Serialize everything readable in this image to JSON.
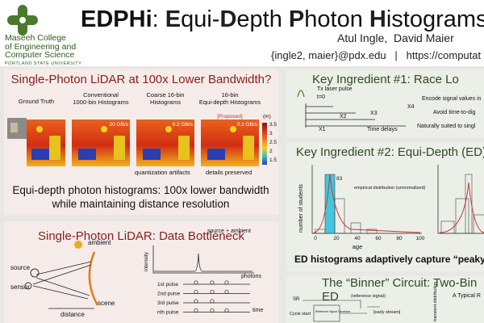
{
  "header": {
    "title_parts": [
      "EDPHi",
      ": ",
      "E",
      "qui-",
      "D",
      "epth ",
      "P",
      "hoton ",
      "H",
      "istograms for"
    ],
    "logo_lines": [
      "Maseeh College",
      "of Engineering and",
      "Computer Science",
      "PORTLAND STATE UNIVERSITY"
    ],
    "authors": "Atul Ingle,  David Maier",
    "contact": "{ingle2, maier}@pdx.edu   |   https://computat"
  },
  "panel_lidar": {
    "title": "Single-Photon LiDAR at 100x Lower Bandwidth?",
    "images": [
      {
        "label": "Ground Truth"
      },
      {
        "label": "Conventional 1000-bin Histograms",
        "rate": "20 GB/s"
      },
      {
        "label": "Coarse 16-bin Histograms",
        "rate": "0.2 GB/s"
      },
      {
        "label": "16-bin Equi-depth Histograms",
        "tag": "[Proposed]",
        "rate": "0.2 GB/s"
      }
    ],
    "colorbar_ticks": [
      "3.5",
      "3",
      "2.5",
      "2",
      "1.5"
    ],
    "colorbar_unit": "(m)",
    "notes": [
      "quantization artifacts",
      "details preserved"
    ],
    "caption": "Equi-depth photon histograms: 100x lower bandwidth while maintaining distance resolution"
  },
  "panel_bottleneck": {
    "title": "Single-Photon LiDAR: Data Bottleneck",
    "labels": {
      "source": "source",
      "ambient": "ambient",
      "sensor": "sensor",
      "scene": "scene",
      "distance": "distance",
      "intensity": "intensity",
      "peak": "source + ambient",
      "photons": "photons",
      "time": "time"
    },
    "pulses": [
      "1st pulse",
      "2nd pulse",
      "3rd pulse",
      "nth pulse"
    ]
  },
  "panel_race": {
    "title": "Key Ingredient #1: Race Lo",
    "labels": [
      "Tx laser pulse",
      "t=0",
      "X1",
      "X2",
      "X3",
      "X4",
      "Time delays"
    ],
    "bullets": [
      "Encode signal values in",
      "Avoid time-to-dig",
      "Naturally suited to singl"
    ]
  },
  "panel_ed": {
    "title": "Key Ingredient #2: Equi-Depth (ED)",
    "y_label": "number of students",
    "x_label": "age",
    "x_ticks": [
      "0",
      "20",
      "40",
      "60",
      "80",
      "100"
    ],
    "legend": "empirical distribution (unnormalized)",
    "peak_label": "83",
    "caption": "ED histograms adaptively capture “peaky”"
  },
  "panel_binner": {
    "title": "The “Binner” Circuit: Two-Bin ED",
    "labels": [
      "SR",
      "(reference signal)",
      "[early stream]",
      "Cycle start",
      "Reference Signal Generator",
      "transient distribution",
      "A Typical R"
    ]
  }
}
